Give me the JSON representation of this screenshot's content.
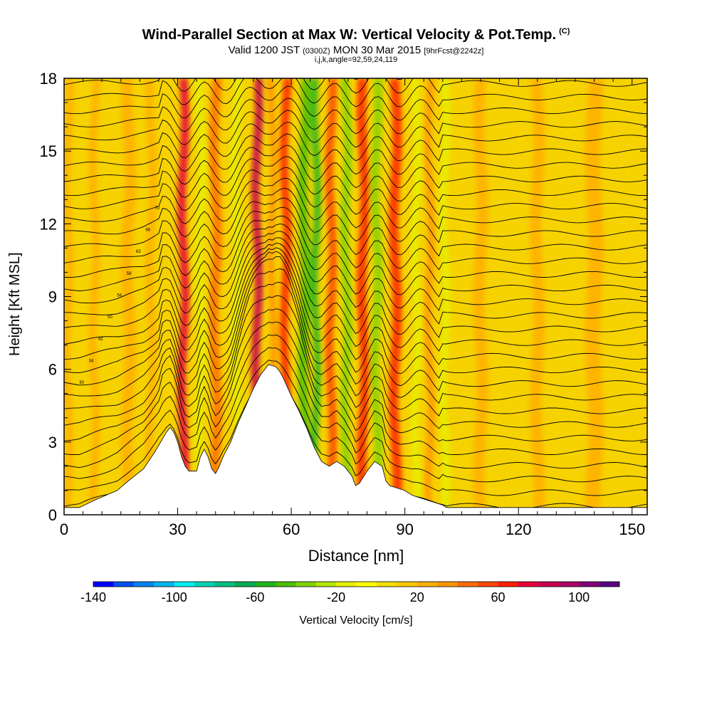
{
  "title": {
    "main": "Wind-Parallel Section at Max W: Vertical Velocity & Pot.Temp.",
    "mark": "(C)",
    "valid_prefix": "Valid 1200 JST",
    "valid_utc": "(0300Z)",
    "valid_date": "MON 30 Mar 2015",
    "forecast": "[9hrFcst@2242z]",
    "indices": "i,j,k,angle=92,59,24,119"
  },
  "chart_data": {
    "type": "heatmap",
    "xlabel": "Distance [nm]",
    "ylabel": "Height [Kft MSL]",
    "xlim": [
      0,
      154
    ],
    "ylim": [
      0,
      18
    ],
    "xticks": [
      0,
      30,
      60,
      90,
      120,
      150
    ],
    "yticks": [
      0,
      3,
      6,
      9,
      12,
      15,
      18
    ],
    "colorbar": {
      "label": "Vertical Velocity [cm/s]",
      "ticks": [
        -140,
        -100,
        -60,
        -20,
        20,
        60,
        100
      ],
      "levels": [
        -140,
        -130,
        -120,
        -110,
        -100,
        -90,
        -80,
        -70,
        -60,
        -50,
        -40,
        -30,
        -20,
        -10,
        0,
        10,
        20,
        30,
        40,
        50,
        60,
        70,
        80,
        90,
        100,
        110
      ],
      "colors": [
        "#0000ff",
        "#0050f0",
        "#0082f0",
        "#00b4f0",
        "#00f0f0",
        "#00d2b4",
        "#00be82",
        "#00aa50",
        "#1eb41e",
        "#4bbe00",
        "#82d200",
        "#b4e600",
        "#e6f000",
        "#ffff00",
        "#f5e100",
        "#ffc800",
        "#ffaf00",
        "#ff9600",
        "#ff6e00",
        "#ff4600",
        "#ff1e00",
        "#e6003c",
        "#c80050",
        "#aa0064",
        "#820078",
        "#5a0082"
      ]
    },
    "terrain": {
      "x": [
        0,
        3,
        4,
        8,
        14,
        17,
        21,
        24,
        27,
        28,
        29,
        30,
        31,
        32,
        33,
        35,
        36,
        37,
        38,
        39,
        40,
        41,
        42,
        44,
        46,
        48,
        50,
        52,
        53,
        54,
        56,
        57,
        58,
        60,
        62,
        64,
        66,
        68,
        70,
        72,
        74,
        76,
        77,
        78,
        80,
        82,
        84,
        85,
        86,
        88,
        90,
        92,
        96,
        100,
        101,
        102,
        110,
        130,
        154
      ],
      "y": [
        0.3,
        0.3,
        0.3,
        0.6,
        1.0,
        1.4,
        1.9,
        2.6,
        3.4,
        3.6,
        3.4,
        3.0,
        2.4,
        2.0,
        1.8,
        1.8,
        2.4,
        2.7,
        2.4,
        1.9,
        1.7,
        2.0,
        2.4,
        3.0,
        3.8,
        4.5,
        5.2,
        5.8,
        6.0,
        6.2,
        6.1,
        5.9,
        5.6,
        4.9,
        4.3,
        3.6,
        2.8,
        2.2,
        2.0,
        2.2,
        2.0,
        1.6,
        1.2,
        1.3,
        1.8,
        2.2,
        2.0,
        1.4,
        1.2,
        1.1,
        1.0,
        0.8,
        0.6,
        0.4,
        0.3,
        0.3,
        0.3,
        0.3,
        0.3
      ]
    },
    "wv_bands": [
      {
        "x": 1,
        "w": 2,
        "value": 20
      },
      {
        "x": 8,
        "w": 2,
        "value": 20
      },
      {
        "x": 17,
        "w": 3,
        "value": 20
      },
      {
        "x": 23,
        "w": 2,
        "value": 20
      },
      {
        "x": 31.5,
        "w": 2.2,
        "value": 70
      },
      {
        "x": 36,
        "w": 2,
        "value": -20
      },
      {
        "x": 40,
        "w": 2.5,
        "value": 40
      },
      {
        "x": 45.5,
        "w": 2,
        "value": -20
      },
      {
        "x": 51,
        "w": 2.2,
        "value": 80
      },
      {
        "x": 55,
        "w": 2,
        "value": 30
      },
      {
        "x": 58.5,
        "w": 2.2,
        "value": 60
      },
      {
        "x": 63.5,
        "w": 2.5,
        "value": -50
      },
      {
        "x": 66.5,
        "w": 1.8,
        "value": -60
      },
      {
        "x": 70.5,
        "w": 2.2,
        "value": 50
      },
      {
        "x": 74.5,
        "w": 2.2,
        "value": -40
      },
      {
        "x": 79,
        "w": 2.5,
        "value": 60
      },
      {
        "x": 82.5,
        "w": 2.2,
        "value": -40
      },
      {
        "x": 87.5,
        "w": 2.5,
        "value": 60
      },
      {
        "x": 93,
        "w": 2,
        "value": -20
      },
      {
        "x": 96.5,
        "w": 2,
        "value": 30
      },
      {
        "x": 100.5,
        "w": 2,
        "value": -20
      },
      {
        "x": 110,
        "w": 3,
        "value": 20
      },
      {
        "x": 125,
        "w": 3,
        "value": 20
      },
      {
        "x": 140,
        "w": 4,
        "value": 20
      }
    ],
    "theta_line_count": 34,
    "theta_labels": [
      "30",
      "34",
      "42",
      "50",
      "54",
      "58",
      "62",
      "66",
      "70"
    ]
  },
  "colors": {
    "background_fill": "#f6d200",
    "frame": "#000000",
    "contour": "#000000"
  }
}
